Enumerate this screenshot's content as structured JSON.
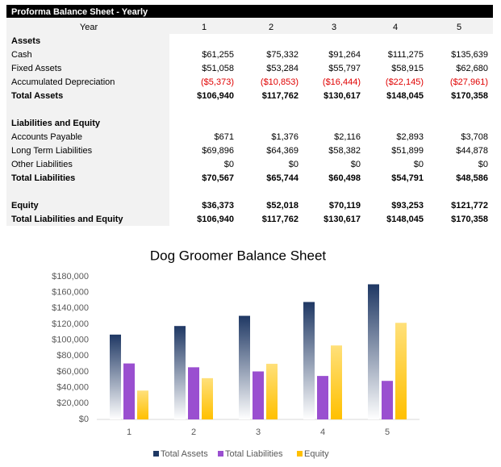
{
  "table": {
    "title": "Proforma Balance Sheet - Yearly",
    "header": [
      "Year",
      "1",
      "2",
      "3",
      "4",
      "5"
    ],
    "rows": [
      [
        "Assets"
      ],
      [
        "Cash",
        "$61,255",
        "$75,332",
        "$91,264",
        "$111,275",
        "$135,639"
      ],
      [
        "Fixed Assets",
        "$51,058",
        "$53,284",
        "$55,797",
        "$58,915",
        "$62,680"
      ],
      [
        "Accumulated Depreciation",
        "($5,373)",
        "($10,853)",
        "($16,444)",
        "($22,145)",
        "($27,961)"
      ],
      [
        "Total Assets",
        "$106,940",
        "$117,762",
        "$130,617",
        "$148,045",
        "$170,358"
      ],
      [
        "Liabilities and Equity"
      ],
      [
        "Accounts Payable",
        "$671",
        "$1,376",
        "$2,116",
        "$2,893",
        "$3,708"
      ],
      [
        "Long Term Liabilities",
        "$69,896",
        "$64,369",
        "$58,382",
        "$51,899",
        "$44,878"
      ],
      [
        "Other Liabilities",
        "$0",
        "$0",
        "$0",
        "$0",
        "$0"
      ],
      [
        "Total Liabilities",
        "$70,567",
        "$65,744",
        "$60,498",
        "$54,791",
        "$48,586"
      ],
      [
        "Equity",
        "$36,373",
        "$52,018",
        "$70,119",
        "$93,253",
        "$121,772"
      ],
      [
        "Total Liabilities and Equity",
        "$106,940",
        "$117,762",
        "$130,617",
        "$148,045",
        "$170,358"
      ]
    ]
  },
  "chart_data": {
    "type": "bar",
    "title": "Dog Groomer Balance Sheet",
    "categories": [
      "1",
      "2",
      "3",
      "4",
      "5"
    ],
    "series": [
      {
        "name": "Total Assets",
        "color": "#1f3864",
        "values": [
          106940,
          117762,
          130617,
          148045,
          170358
        ]
      },
      {
        "name": "Total Liabilities",
        "color": "#9a4fd0",
        "values": [
          70567,
          65744,
          60498,
          54791,
          48586
        ]
      },
      {
        "name": "Equity",
        "color": "#ffc000",
        "values": [
          36373,
          52018,
          70119,
          93253,
          121772
        ]
      }
    ],
    "ylim": [
      0,
      180000
    ],
    "yticks": [
      {
        "value": 0,
        "label": "$0"
      },
      {
        "value": 20000,
        "label": "$20,000"
      },
      {
        "value": 40000,
        "label": "$40,000"
      },
      {
        "value": 60000,
        "label": "$60,000"
      },
      {
        "value": 80000,
        "label": "$80,000"
      },
      {
        "value": 100000,
        "label": "$100,000"
      },
      {
        "value": 120000,
        "label": "$120,000"
      },
      {
        "value": 140000,
        "label": "$140,000"
      },
      {
        "value": 160000,
        "label": "$160,000"
      },
      {
        "value": 180000,
        "label": "$180,000"
      }
    ],
    "grid": false
  }
}
